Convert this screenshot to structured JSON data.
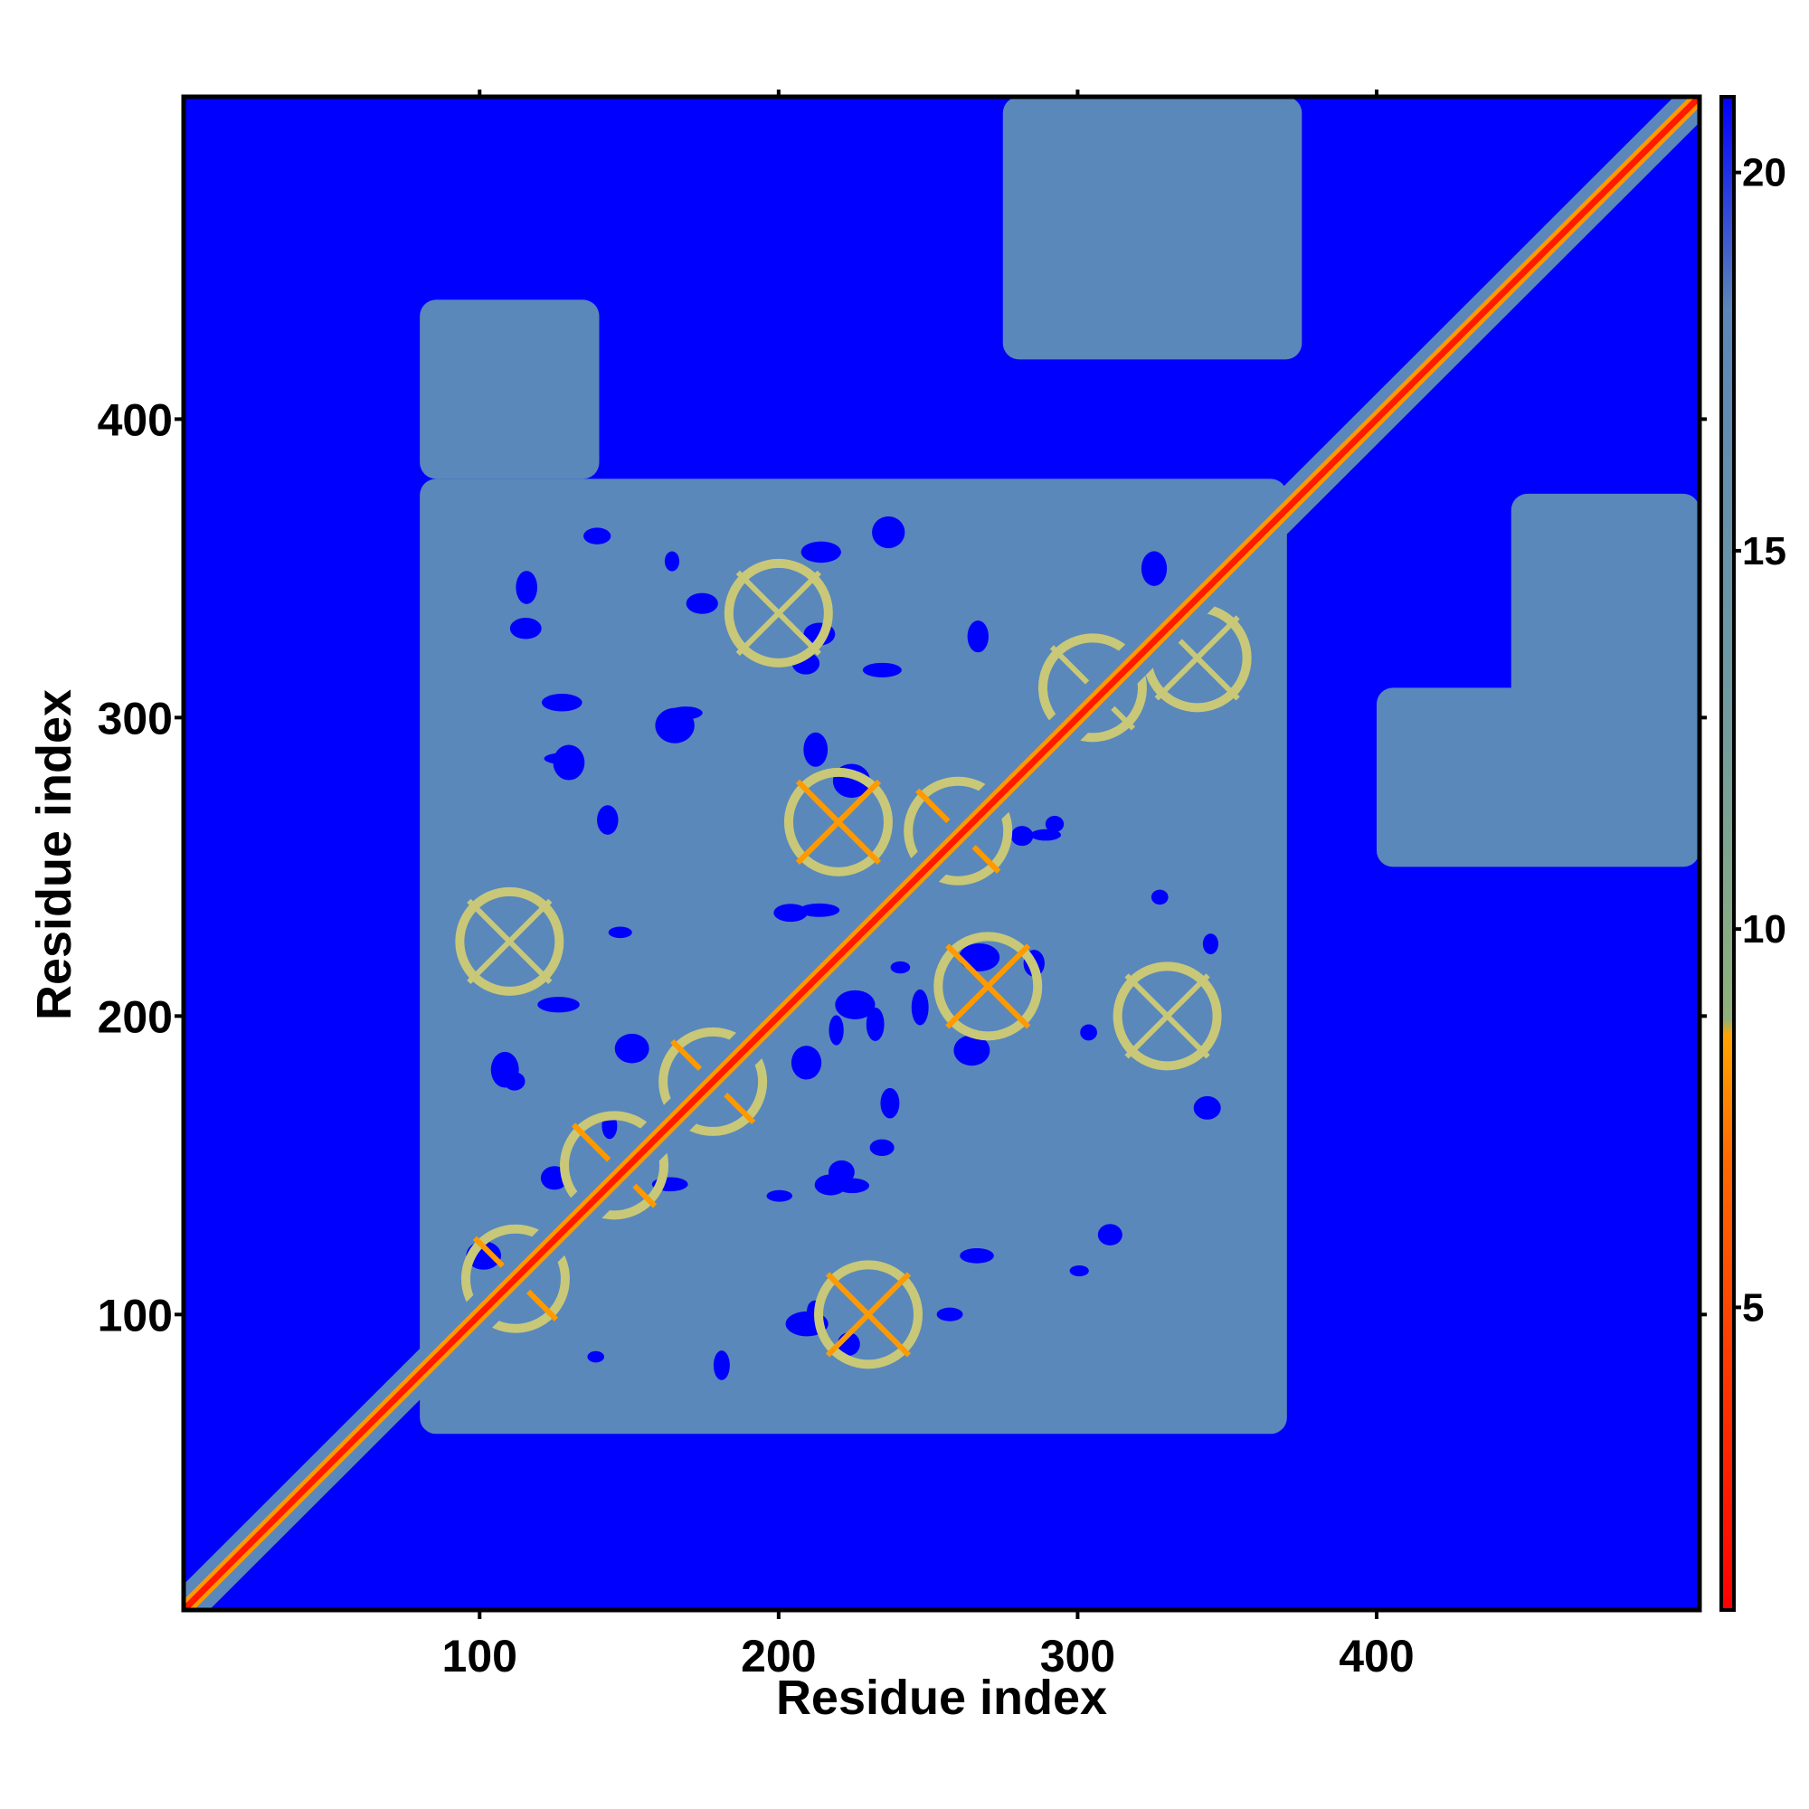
{
  "chart_data": {
    "type": "heatmap",
    "title": "",
    "xlabel": "Residue index",
    "ylabel": "Residue index",
    "xlim": [
      1,
      508
    ],
    "ylim": [
      1,
      508
    ],
    "x_ticks": [
      100,
      200,
      300,
      400
    ],
    "y_ticks": [
      100,
      200,
      300,
      400
    ],
    "x_tick_labels": [
      "100",
      "200",
      "300",
      "400"
    ],
    "y_tick_labels": [
      "100",
      "200",
      "300",
      "400"
    ],
    "colorbar": {
      "range": [
        1,
        21
      ],
      "ticks": [
        5,
        10,
        15,
        20
      ],
      "tick_labels": [
        "5",
        "10",
        "15",
        "20"
      ],
      "colors": [
        "#ff0000",
        "#ff6a00",
        "#ffa500",
        "#8fb07a",
        "#5b86b8",
        "#0000ff"
      ]
    },
    "background_value": 21,
    "value_colors": {
      "contact_lt6": "#ff1a00",
      "near_6_8": "#ff9900",
      "mid_9_12": "#c8c878",
      "far_12_20": "#5a88bb",
      "none_gt20": "#0000ff"
    },
    "diagonal": {
      "from": 1,
      "to": 508,
      "value": 3
    },
    "contact_regions": [
      {
        "x": [
          80,
          370
        ],
        "y": [
          60,
          380
        ],
        "value": 16,
        "note": "core domain block"
      },
      {
        "x": [
          275,
          375
        ],
        "y": [
          420,
          508
        ],
        "value": 16
      },
      {
        "x": [
          445,
          508
        ],
        "y": [
          260,
          375
        ],
        "value": 16
      },
      {
        "x": [
          80,
          140
        ],
        "y": [
          380,
          440
        ],
        "value": 18
      },
      {
        "x": [
          400,
          508
        ],
        "y": [
          250,
          310
        ],
        "value": 18
      }
    ],
    "helix_crossings": [
      {
        "x": 112,
        "y": 112,
        "value": 6
      },
      {
        "x": 178,
        "y": 178,
        "value": 6
      },
      {
        "x": 220,
        "y": 265,
        "value": 8
      },
      {
        "x": 260,
        "y": 262,
        "value": 6
      },
      {
        "x": 305,
        "y": 310,
        "value": 9
      },
      {
        "x": 340,
        "y": 320,
        "value": 9
      },
      {
        "x": 330,
        "y": 200,
        "value": 9
      },
      {
        "x": 200,
        "y": 335,
        "value": 9
      },
      {
        "x": 110,
        "y": 225,
        "value": 9
      },
      {
        "x": 145,
        "y": 150,
        "value": 8
      },
      {
        "x": 230,
        "y": 100,
        "value": 8
      },
      {
        "x": 270,
        "y": 210,
        "value": 8
      }
    ]
  }
}
